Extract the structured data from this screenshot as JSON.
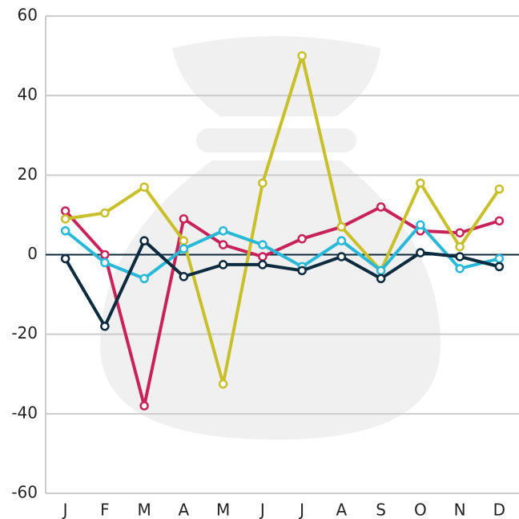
{
  "chart_data": {
    "type": "line",
    "categories": [
      "J",
      "F",
      "M",
      "A",
      "M",
      "J",
      "J",
      "A",
      "S",
      "O",
      "N",
      "D"
    ],
    "series": [
      {
        "color": "#c8225a",
        "values": [
          11,
          0,
          -38,
          9,
          2.5,
          -0.5,
          4,
          7,
          12,
          6,
          5.5,
          8.5
        ]
      },
      {
        "color": "#c8bf2b",
        "values": [
          9,
          10.5,
          17,
          3.5,
          -32.5,
          18,
          50,
          7,
          -4,
          18,
          2,
          16.5
        ]
      },
      {
        "color": "#2ab8d8",
        "values": [
          6,
          -2,
          -6,
          1.5,
          6,
          2.5,
          -3,
          3.5,
          -4,
          7.5,
          -3.5,
          -1
        ]
      },
      {
        "color": "#0d2b3e",
        "values": [
          -1,
          -18,
          3.5,
          -5.5,
          -2.5,
          -2.5,
          -4,
          -0.5,
          -6,
          0.5,
          -0.5,
          -3
        ]
      }
    ],
    "ylim": [
      -60,
      60
    ],
    "yticks": [
      -60,
      -40,
      -20,
      0,
      20,
      40,
      60
    ],
    "grid": true
  }
}
